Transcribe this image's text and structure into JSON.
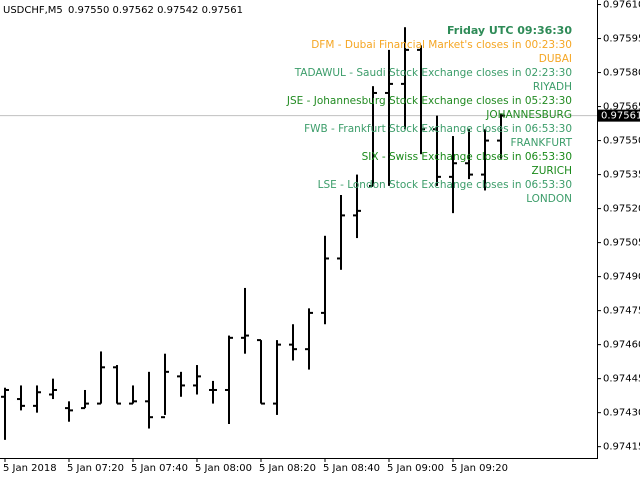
{
  "chart_data": {
    "type": "ohlc",
    "header": {
      "symbol": "USDCHF,M5",
      "quote": "0.97550 0.97562 0.97542 0.97561"
    },
    "categories": [
      "5 Jan 2018",
      null,
      null,
      null,
      "5 Jan 07:20",
      null,
      null,
      null,
      "5 Jan 07:40",
      null,
      null,
      null,
      "5 Jan 08:00",
      null,
      null,
      null,
      "5 Jan 08:20",
      null,
      null,
      null,
      "5 Jan 08:40",
      null,
      null,
      null,
      "5 Jan 09:00",
      null,
      null,
      null,
      "5 Jan 09:20",
      null,
      null,
      null
    ],
    "open": [
      0.97437,
      0.97436,
      0.97433,
      0.97438,
      0.97432,
      0.97432,
      0.97434,
      0.9745,
      0.97434,
      0.97435,
      0.97428,
      0.97446,
      0.97442,
      0.9744,
      0.9744,
      0.97463,
      0.97462,
      0.97434,
      0.9746,
      0.97458,
      0.97474,
      0.97498,
      0.97517,
      0.9753,
      0.97571,
      0.97575,
      0.9759,
      0.97555,
      0.97534,
      0.9754,
      0.97535,
      0.9755
    ],
    "high": [
      0.97441,
      0.97442,
      0.97442,
      0.97445,
      0.97435,
      0.9744,
      0.97457,
      0.97451,
      0.97442,
      0.97448,
      0.97456,
      0.97448,
      0.97451,
      0.97444,
      0.97464,
      0.97485,
      0.97462,
      0.97462,
      0.97469,
      0.97476,
      0.97508,
      0.97526,
      0.97535,
      0.97574,
      0.9759,
      0.976,
      0.97592,
      0.97561,
      0.97552,
      0.97555,
      0.97555,
      0.97562
    ],
    "low": [
      0.97418,
      0.97431,
      0.9743,
      0.97436,
      0.97426,
      0.97432,
      0.97434,
      0.97434,
      0.97434,
      0.97423,
      0.97429,
      0.97437,
      0.97438,
      0.97434,
      0.97425,
      0.97456,
      0.97434,
      0.97429,
      0.97453,
      0.97449,
      0.97469,
      0.97493,
      0.97507,
      0.9753,
      0.9753,
      0.97555,
      0.97544,
      0.9753,
      0.97518,
      0.97533,
      0.97528,
      0.97542
    ],
    "close": [
      0.9744,
      0.97433,
      0.97439,
      0.9744,
      0.97431,
      0.97434,
      0.9745,
      0.97434,
      0.97435,
      0.97428,
      0.97448,
      0.97442,
      0.97446,
      0.9744,
      0.97463,
      0.97464,
      0.97434,
      0.9746,
      0.97458,
      0.97474,
      0.97498,
      0.97517,
      0.97519,
      0.97571,
      0.97575,
      0.9759,
      0.97555,
      0.97534,
      0.9754,
      0.97535,
      0.9755,
      0.97561
    ],
    "color": "#000000",
    "ylim": [
      0.9741,
      0.97612
    ],
    "yticks": [
      {
        "value": 0.9761,
        "label": "0.97610"
      },
      {
        "value": 0.97595,
        "label": "0.97595"
      },
      {
        "value": 0.9758,
        "label": "0.97580"
      },
      {
        "value": 0.97565,
        "label": "0.97565"
      },
      {
        "value": 0.9755,
        "label": "0.97550"
      },
      {
        "value": 0.97535,
        "label": "0.97535"
      },
      {
        "value": 0.9752,
        "label": "0.97520"
      },
      {
        "value": 0.97505,
        "label": "0.97505"
      },
      {
        "value": 0.9749,
        "label": "0.97490"
      },
      {
        "value": 0.97475,
        "label": "0.97475"
      },
      {
        "value": 0.9746,
        "label": "0.97460"
      },
      {
        "value": 0.97445,
        "label": "0.97445"
      },
      {
        "value": 0.9743,
        "label": "0.97430"
      },
      {
        "value": 0.97415,
        "label": "0.97415"
      }
    ],
    "last_price": {
      "value": 0.97561,
      "label": "0.97561"
    },
    "annotations": [
      {
        "text": "Friday UTC 09:36:30",
        "color": "#2e8b57",
        "bold": true
      },
      {
        "text": "DFM - Dubai Financial Market's closes in 00:23:30",
        "color": "#f5a623"
      },
      {
        "text": "DUBAI",
        "color": "#f5a623"
      },
      {
        "text": "TADAWUL - Saudi Stock Exchange closes in 02:23:30",
        "color": "#3c9d6a"
      },
      {
        "text": "RIYADH",
        "color": "#3c9d6a"
      },
      {
        "text": "JSE - Johannesburg Stock Exchange closes in 05:23:30",
        "color": "#228b22"
      },
      {
        "text": "JOHANNESBURG",
        "color": "#228b22"
      },
      {
        "text": "FWB - Frankfurt Stock Exchange closes in 06:53:30",
        "color": "#3c9d6a"
      },
      {
        "text": "FRANKFURT",
        "color": "#3c9d6a"
      },
      {
        "text": "SIX - Swiss Exchange closes in 06:53:30",
        "color": "#1a8a1a"
      },
      {
        "text": "ZURICH",
        "color": "#1a8a1a"
      },
      {
        "text": "LSE - London Stock Exchange closes in 06:53:30",
        "color": "#3c9d6a"
      },
      {
        "text": "LONDON",
        "color": "#3c9d6a"
      }
    ]
  }
}
